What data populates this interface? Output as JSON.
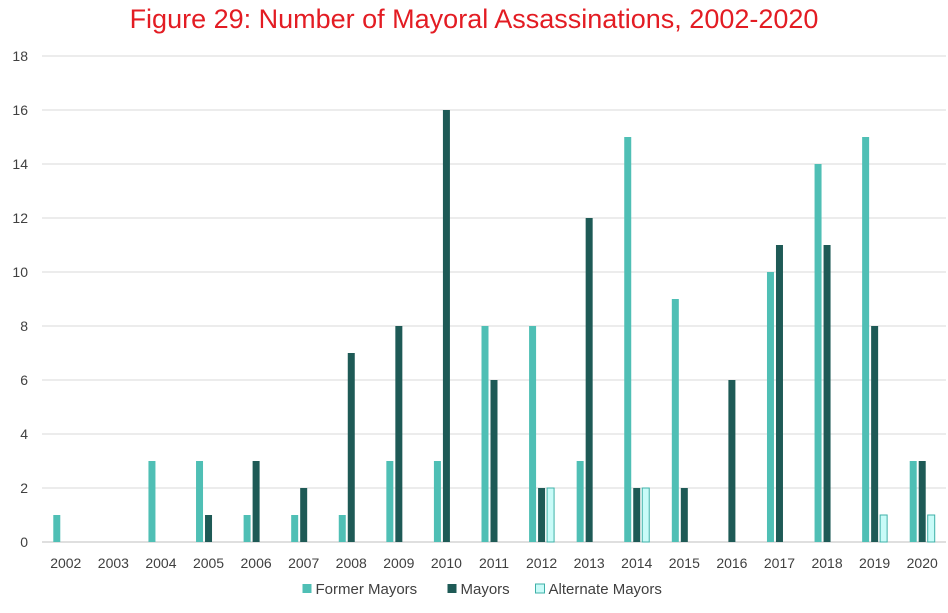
{
  "chart_data": {
    "type": "bar",
    "title": "Figure 29: Number of Mayoral Assassinations, 2002-2020",
    "xlabel": "",
    "ylabel": "",
    "ylim": [
      0,
      18
    ],
    "yticks": [
      0,
      2,
      4,
      6,
      8,
      10,
      12,
      14,
      16,
      18
    ],
    "grid": true,
    "legend_position": "bottom",
    "categories": [
      "2002",
      "2003",
      "2004",
      "2005",
      "2006",
      "2007",
      "2008",
      "2009",
      "2010",
      "2011",
      "2012",
      "2013",
      "2014",
      "2015",
      "2016",
      "2017",
      "2018",
      "2019",
      "2020"
    ],
    "series": [
      {
        "name": "Former Mayors",
        "color": "#4fbfb5",
        "values": [
          1,
          0,
          3,
          3,
          1,
          1,
          1,
          3,
          3,
          8,
          8,
          3,
          15,
          9,
          0,
          10,
          14,
          15,
          3
        ]
      },
      {
        "name": "Mayors",
        "color": "#1e5a56",
        "values": [
          0,
          0,
          0,
          1,
          3,
          2,
          7,
          8,
          16,
          6,
          2,
          12,
          2,
          2,
          6,
          11,
          11,
          8,
          3
        ]
      },
      {
        "name": "Alternate Mayors",
        "color": "#c9fbf8",
        "stroke": "#3fb0a8",
        "values": [
          0,
          0,
          0,
          0,
          0,
          0,
          0,
          0,
          0,
          0,
          2,
          0,
          2,
          0,
          0,
          0,
          0,
          1,
          1
        ]
      }
    ]
  }
}
